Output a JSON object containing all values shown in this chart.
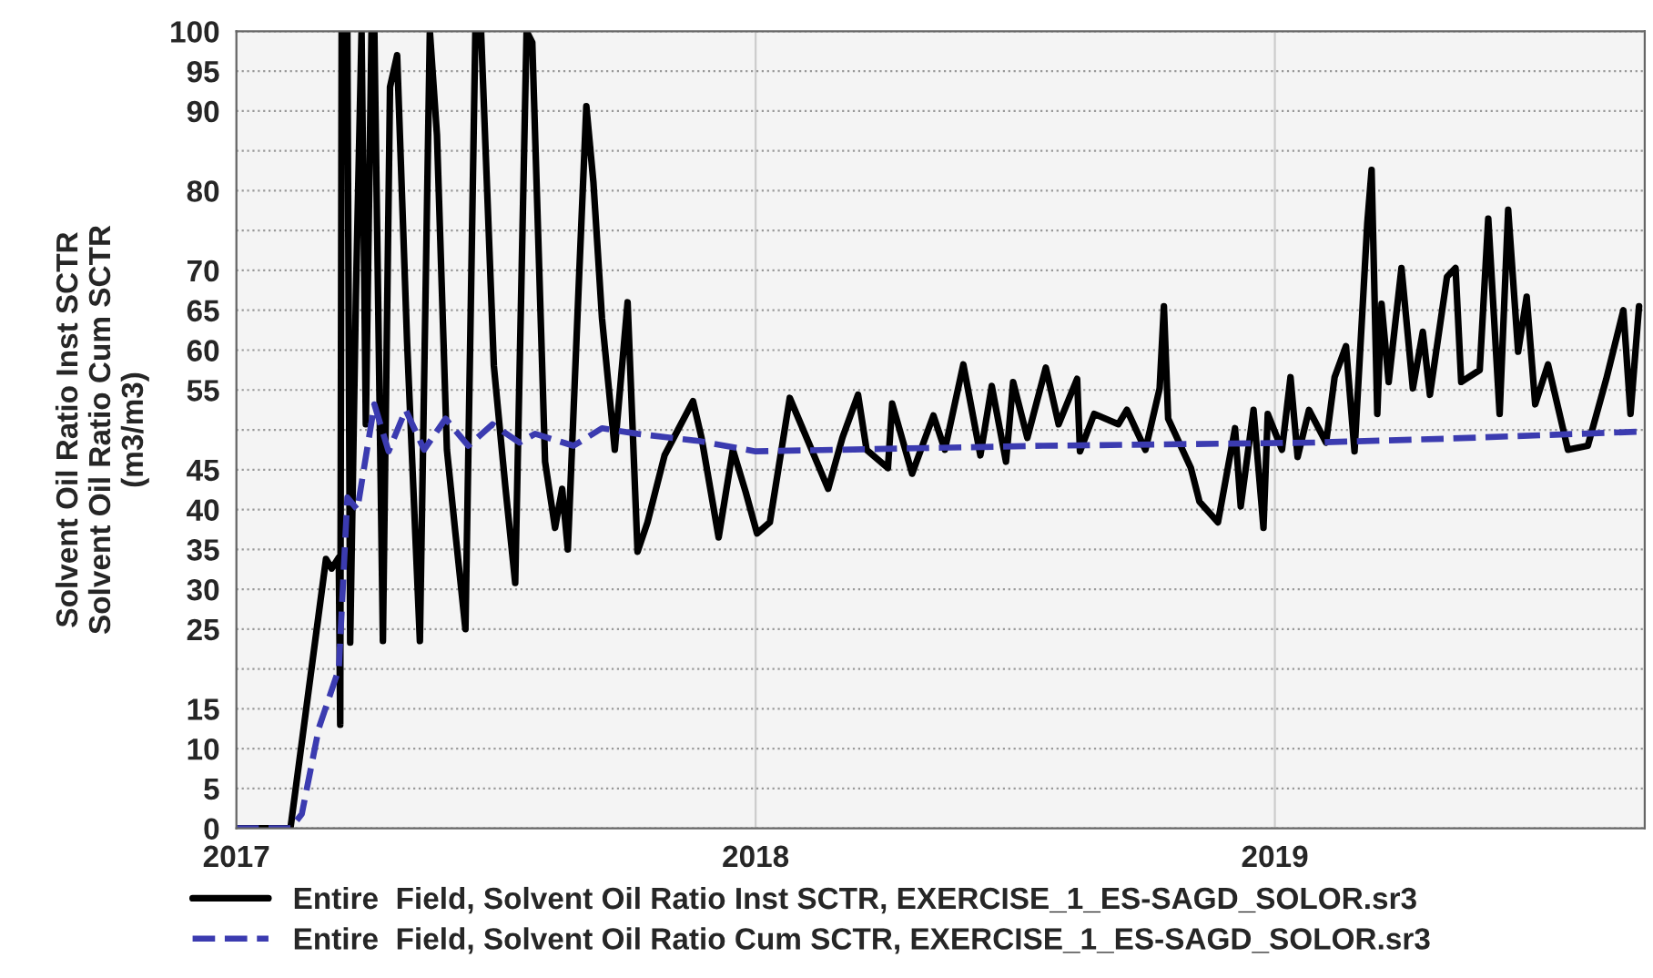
{
  "chart_data": {
    "type": "line",
    "ylabel": "Solvent Oil Ratio Inst SCTR\nSolvent Oil Ratio Cum SCTR\n(m3/m3)",
    "xlim": [
      "2017-01-01",
      "2019-09-18"
    ],
    "xticks": [
      {
        "value": "2017-01-01",
        "label": "2017"
      },
      {
        "value": "2018-01-01",
        "label": "2018"
      },
      {
        "value": "2019-01-01",
        "label": "2019"
      }
    ],
    "ylim": [
      0,
      100
    ],
    "yticks": [
      0,
      5,
      10,
      15,
      {
        "value": 20,
        "label": null
      },
      25,
      30,
      35,
      40,
      45,
      {
        "value": 50,
        "label": null
      },
      55,
      60,
      65,
      70,
      {
        "value": 75,
        "label": null
      },
      80,
      {
        "value": 85,
        "label": null
      },
      90,
      95,
      100
    ],
    "grid": true,
    "legend": "bottom",
    "series": [
      {
        "name": "Entire  Field, Solvent Oil Ratio Inst SCTR, EXERCISE_1_ES-SAGD_SOLOR.sr3",
        "color": "#000000",
        "line_style": "solid",
        "x": [
          "2017-01-01",
          "2017-02-08",
          "2017-03-05",
          "2017-03-09",
          "2017-03-14",
          "2017-03-15",
          "2017-03-16",
          "2017-03-20",
          "2017-03-22",
          "2017-03-26",
          "2017-03-30",
          "2017-04-02",
          "2017-04-06",
          "2017-04-08",
          "2017-04-14",
          "2017-04-19",
          "2017-04-24",
          "2017-05-01",
          "2017-05-10",
          "2017-05-17",
          "2017-05-22",
          "2017-05-29",
          "2017-06-04",
          "2017-06-11",
          "2017-06-18",
          "2017-06-22",
          "2017-07-01",
          "2017-07-09",
          "2017-07-16",
          "2017-07-24",
          "2017-07-28",
          "2017-08-06",
          "2017-08-13",
          "2017-08-18",
          "2017-08-22",
          "2017-08-30",
          "2017-09-04",
          "2017-09-09",
          "2017-09-15",
          "2017-09-24",
          "2017-10-03",
          "2017-10-10",
          "2017-10-17",
          "2017-10-29",
          "2017-11-18",
          "2017-11-24",
          "2017-12-06",
          "2017-12-16",
          "2017-12-25",
          "2018-01-02",
          "2018-01-11",
          "2018-01-25",
          "2018-02-21",
          "2018-03-03",
          "2018-03-14",
          "2018-03-20",
          "2018-04-04",
          "2018-04-07",
          "2018-04-21",
          "2018-05-06",
          "2018-05-14",
          "2018-05-27",
          "2018-06-08",
          "2018-06-16",
          "2018-06-26",
          "2018-07-01",
          "2018-07-11",
          "2018-07-24",
          "2018-08-02",
          "2018-08-15",
          "2018-08-17",
          "2018-08-27",
          "2018-09-13",
          "2018-09-19",
          "2018-10-02",
          "2018-10-12",
          "2018-10-15",
          "2018-10-18",
          "2018-11-03",
          "2018-11-09",
          "2018-11-22",
          "2018-12-04",
          "2018-12-08",
          "2018-12-17",
          "2018-12-24",
          "2018-12-27",
          "2019-01-06",
          "2019-01-12",
          "2019-01-17",
          "2019-01-25",
          "2019-02-06",
          "2019-02-12",
          "2019-02-20",
          "2019-02-26",
          "2019-03-07",
          "2019-03-10",
          "2019-03-14",
          "2019-03-17",
          "2019-03-22",
          "2019-03-31",
          "2019-04-08",
          "2019-04-15",
          "2019-04-20",
          "2019-05-02",
          "2019-05-08",
          "2019-05-12",
          "2019-05-25",
          "2019-05-31",
          "2019-06-08",
          "2019-06-14",
          "2019-06-21",
          "2019-06-27",
          "2019-07-03",
          "2019-07-12",
          "2019-07-26",
          "2019-08-09",
          "2019-08-22",
          "2019-09-03",
          "2019-09-08",
          "2019-09-14"
        ],
        "values": [
          0,
          0,
          33.8,
          32.6,
          34,
          13,
          100,
          100,
          23.3,
          66.7,
          100,
          50.7,
          100,
          100,
          23.5,
          93,
          97,
          61,
          23.5,
          100,
          87,
          47.5,
          37,
          25,
          100,
          100,
          58,
          43,
          30.8,
          100,
          98.6,
          46,
          37.7,
          42.6,
          35,
          69.6,
          90.6,
          81,
          64,
          47.5,
          66,
          34.7,
          38.4,
          46.8,
          53.6,
          49,
          36.5,
          47.5,
          42.2,
          37,
          38.4,
          54,
          42.6,
          49,
          54.4,
          47.5,
          45.2,
          53.3,
          44.5,
          51.8,
          47.5,
          58.2,
          46.8,
          55.5,
          46,
          56,
          49,
          57.8,
          50.7,
          56.4,
          47.3,
          52,
          50.7,
          52.5,
          47.5,
          55.2,
          65.5,
          51.4,
          45.2,
          41,
          38.4,
          50.2,
          40.4,
          52.5,
          37.7,
          52,
          47.5,
          56.6,
          46.6,
          52.5,
          48.4,
          56.6,
          60.5,
          47.3,
          76,
          82.6,
          52,
          65.8,
          56,
          70.3,
          55.2,
          62.3,
          54.4,
          69.2,
          70.3,
          56,
          57.5,
          76.5,
          52,
          77.6,
          59.8,
          66.7,
          53.2,
          58.2,
          47.5,
          48,
          56.4,
          65,
          52,
          65.5
        ]
      },
      {
        "name": "Entire  Field, Solvent Oil Ratio Cum SCTR, EXERCISE_1_ES-SAGD_SOLOR.sr3",
        "color": "#3b3bb0",
        "line_style": "dashed",
        "x": [
          "2017-01-01",
          "2017-02-08",
          "2017-02-16",
          "2017-02-28",
          "2017-03-14",
          "2017-03-20",
          "2017-03-27",
          "2017-04-08",
          "2017-04-18",
          "2017-04-30",
          "2017-05-13",
          "2017-05-28",
          "2017-06-13",
          "2017-06-30",
          "2017-07-19",
          "2017-07-30",
          "2017-08-26",
          "2017-09-15",
          "2017-10-10",
          "2017-11-22",
          "2018-01-01",
          "2018-07-22",
          "2019-01-28",
          "2019-05-03",
          "2019-09-18"
        ],
        "values": [
          0,
          0,
          1.8,
          12.6,
          20,
          41.5,
          40,
          53.2,
          47.3,
          52.5,
          47.5,
          51.4,
          48,
          50.7,
          48.4,
          49.5,
          48,
          50.2,
          49.5,
          48.6,
          47.3,
          48,
          48.4,
          48.9,
          49.8
        ]
      }
    ]
  }
}
